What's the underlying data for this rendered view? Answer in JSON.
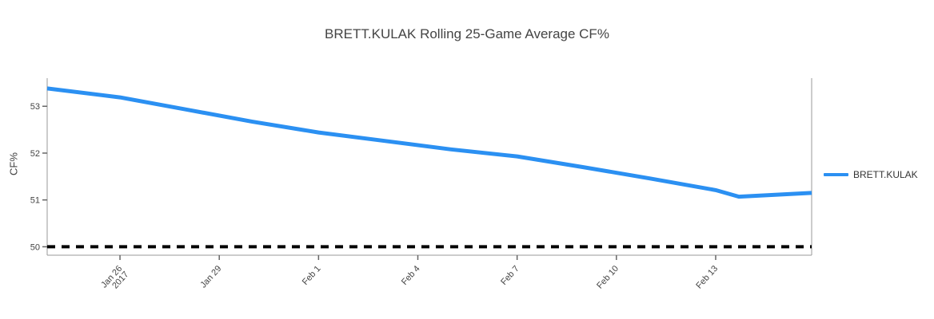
{
  "chart_data": {
    "type": "line",
    "title": "BRETT.KULAK Rolling 25-Game Average CF%",
    "ylabel": "CF%",
    "xlabel": "",
    "grid": false,
    "legend": {
      "position": "right",
      "entries": [
        "BRETT.KULAK"
      ]
    },
    "colors": {
      "line": "#2b90f2",
      "axis": "#999999",
      "tick_mark": "#666666",
      "tick_text": "#444444",
      "title_text": "#444444",
      "reference_line": "#000000",
      "background": "#ffffff"
    },
    "series": [
      {
        "name": "BRETT.KULAK",
        "color": "#2b90f2",
        "points": [
          {
            "date": "Jan 24",
            "day": 23.8,
            "value": 53.38
          },
          {
            "date": "Jan 26",
            "day": 26.0,
            "value": 53.19
          },
          {
            "date": "Jan 28",
            "day": 28.0,
            "value": 52.93
          },
          {
            "date": "Jan 30",
            "day": 30.0,
            "value": 52.67
          },
          {
            "date": "Feb 1",
            "day": 32.0,
            "value": 52.44
          },
          {
            "date": "Feb 3",
            "day": 34.0,
            "value": 52.26
          },
          {
            "date": "Feb 5",
            "day": 36.0,
            "value": 52.08
          },
          {
            "date": "Feb 7",
            "day": 38.0,
            "value": 51.93
          },
          {
            "date": "Feb 9",
            "day": 40.0,
            "value": 51.7
          },
          {
            "date": "Feb 11",
            "day": 42.0,
            "value": 51.46
          },
          {
            "date": "Feb 13",
            "day": 44.0,
            "value": 51.21
          },
          {
            "date": "Feb 14",
            "day": 44.7,
            "value": 51.07
          },
          {
            "date": "Feb 16",
            "day": 46.9,
            "value": 51.15
          }
        ]
      }
    ],
    "reference_line": {
      "value": 50,
      "style": "dashed",
      "color": "#000000"
    },
    "x_ticks": [
      {
        "day": 26,
        "label": "Jan 26",
        "sublabel": "2017"
      },
      {
        "day": 29,
        "label": "Jan 29",
        "sublabel": ""
      },
      {
        "day": 32,
        "label": "Feb 1",
        "sublabel": ""
      },
      {
        "day": 35,
        "label": "Feb 4",
        "sublabel": ""
      },
      {
        "day": 38,
        "label": "Feb 7",
        "sublabel": ""
      },
      {
        "day": 41,
        "label": "Feb 10",
        "sublabel": ""
      },
      {
        "day": 44,
        "label": "Feb 13",
        "sublabel": ""
      }
    ],
    "y_ticks": [
      50,
      51,
      52,
      53
    ],
    "xlim_days": [
      23.8,
      46.9
    ],
    "ylim": [
      49.82,
      53.6
    ]
  }
}
